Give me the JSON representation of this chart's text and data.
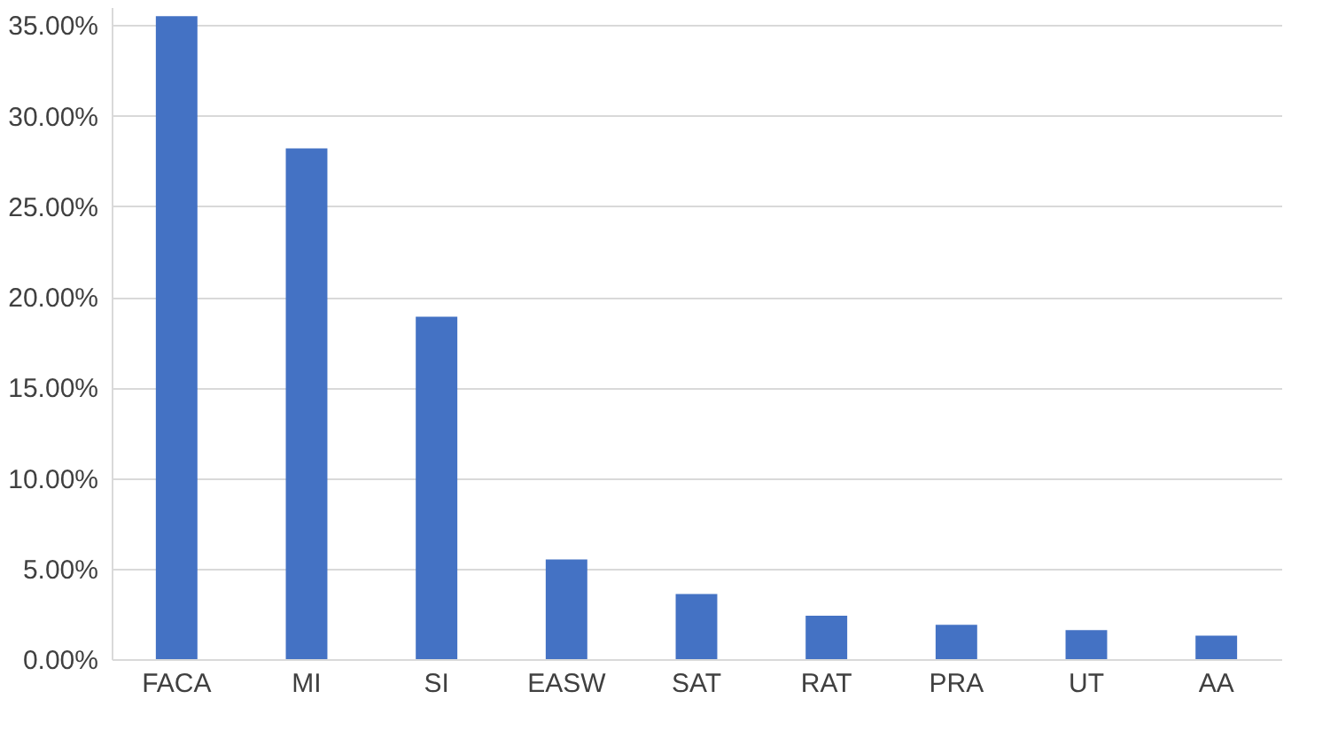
{
  "chart_data": {
    "type": "bar",
    "categories": [
      "FACA",
      "MI",
      "SI",
      "EASW",
      "SAT",
      "RAT",
      "PRA",
      "UT",
      "AA"
    ],
    "values": [
      35.5,
      28.2,
      18.9,
      5.5,
      3.6,
      2.4,
      1.9,
      1.6,
      1.3
    ],
    "color": "#4472c4",
    "ylim": [
      0,
      36
    ],
    "yticks": [
      {
        "value": 0,
        "label": "0.00%"
      },
      {
        "value": 5,
        "label": "5.00%"
      },
      {
        "value": 10,
        "label": "10.00%"
      },
      {
        "value": 15,
        "label": "15.00%"
      },
      {
        "value": 20,
        "label": "20.00%"
      },
      {
        "value": 25,
        "label": "25.00%"
      },
      {
        "value": 30,
        "label": "30.00%"
      },
      {
        "value": 35,
        "label": "35.00%"
      }
    ],
    "grid": "y"
  }
}
